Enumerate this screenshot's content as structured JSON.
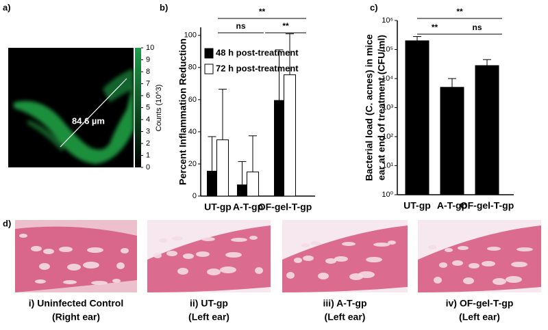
{
  "panel_labels": [
    "a)",
    "b)",
    "c)",
    "d)"
  ],
  "panel_a": {
    "scale_label": "84.6 µm",
    "colorbar": {
      "label": "Counts (10^3)",
      "ticks": [
        0,
        1,
        2,
        3,
        4,
        5,
        6,
        7,
        8,
        9,
        10
      ],
      "lim": [
        0,
        10
      ],
      "color": "#1e9e4a"
    }
  },
  "chart_data": [
    {
      "type": "bar",
      "ylabel": "Percent Inflammation Reduction",
      "categories": [
        "UT-gp",
        "A-T-gp",
        "OF-gel-T-gp"
      ],
      "series": [
        {
          "name": "48 h post-treatment",
          "color": "#000000",
          "values": [
            15.5,
            7,
            59.5
          ],
          "errors": [
            21.5,
            14.5,
            31.5
          ]
        },
        {
          "name": "72 h post-treatment",
          "color": "#ffffff",
          "values": [
            35,
            15,
            75.5
          ],
          "errors": [
            31.5,
            22.5,
            25.5
          ]
        }
      ],
      "ylim": [
        0,
        105
      ],
      "yticks": [
        0,
        20,
        40,
        60,
        80,
        100
      ],
      "annotations": [
        "ns",
        "**",
        "**"
      ],
      "legend": "upper left"
    },
    {
      "type": "bar",
      "log_scale": true,
      "ylabel": [
        "Bacterial load (C. acnes) in mice",
        "ear at end of treatment (CFU/ml)"
      ],
      "categories": [
        "UT-gp",
        "A-T-gp",
        "OF-gel-T-gp"
      ],
      "series": [
        {
          "color": "#000000",
          "values": [
            200000,
            5000,
            28000
          ],
          "errors": [
            80000,
            5000,
            17000
          ]
        }
      ],
      "ylim": [
        1,
        1000000
      ],
      "yticks": [
        {
          "value": 1,
          "label": "10⁰"
        },
        {
          "value": 10,
          "label": "10¹"
        },
        {
          "value": 100,
          "label": "10²"
        },
        {
          "value": 1000,
          "label": "10³"
        },
        {
          "value": 10000,
          "label": "10⁴"
        },
        {
          "value": 100000,
          "label": "10⁵"
        },
        {
          "value": 1000000,
          "label": "10⁶"
        }
      ],
      "annotations": [
        "**",
        "**",
        "ns"
      ]
    }
  ],
  "panel_d": {
    "captions": [
      [
        "i) Uninfected Control",
        "(Right ear)"
      ],
      [
        "ii) UT-gp",
        "(Left ear)"
      ],
      [
        "iii) A-T-gp",
        "(Left ear)"
      ],
      [
        "iv) OF-gel-T-gp",
        "(Left ear)"
      ]
    ]
  }
}
